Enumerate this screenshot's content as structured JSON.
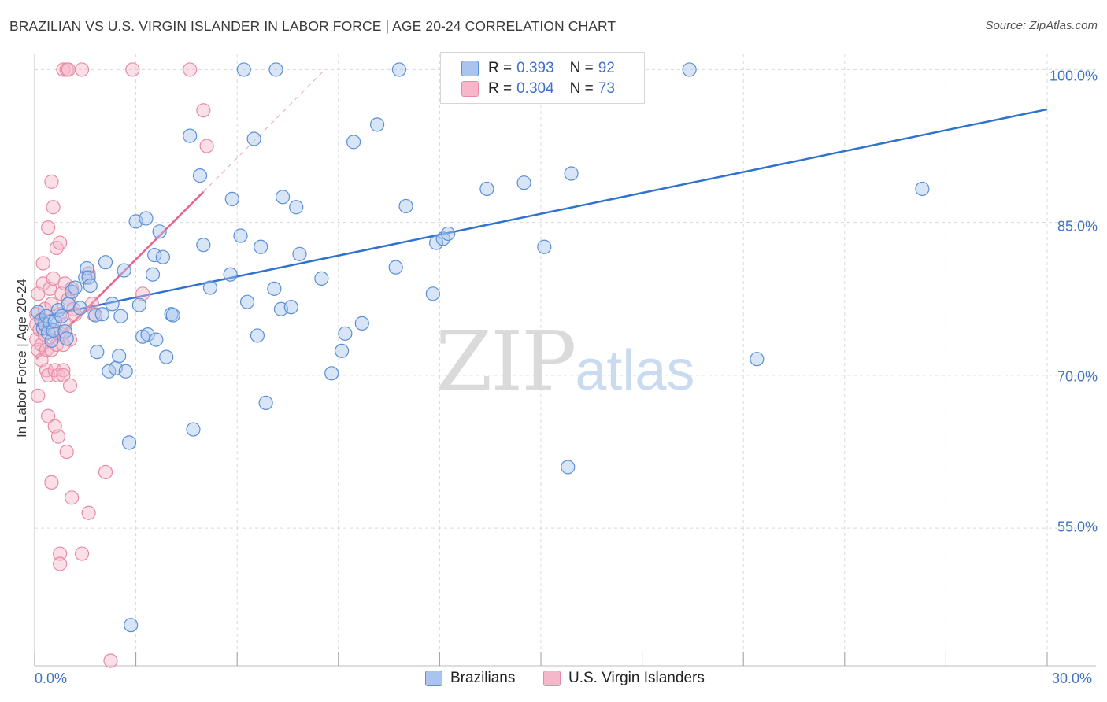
{
  "header": {
    "title": "BRAZILIAN VS U.S. VIRGIN ISLANDER IN LABOR FORCE | AGE 20-24 CORRELATION CHART",
    "source": "Source: ZipAtlas.com"
  },
  "watermark": {
    "zip": "ZIP",
    "atlas": "atlas"
  },
  "legend": {
    "brazilians": {
      "r_label": "R =",
      "r_value": "0.393",
      "n_label": "N =",
      "n_value": "92"
    },
    "virgin": {
      "r_label": "R =",
      "r_value": "0.304",
      "n_label": "N =",
      "n_value": "73"
    }
  },
  "bottom_legend": {
    "brazilians": "Brazilians",
    "virgin": "U.S. Virgin Islanders"
  },
  "colors": {
    "blue_fill": "#a9c5ee",
    "blue_stroke": "#5b8fd8",
    "blue_line": "#2f72d0",
    "pink_fill": "#f5b8ca",
    "pink_stroke": "#e88aa5",
    "pink_line": "#e8638b",
    "grid": "#d9d9d9",
    "tick_text": "#3f72c4"
  },
  "chart_data": {
    "type": "scatter",
    "title": "BRAZILIAN VS U.S. VIRGIN ISLANDER IN LABOR FORCE | AGE 20-24 CORRELATION CHART",
    "xlabel": "",
    "ylabel": "In Labor Force | Age 20-24",
    "xlim": [
      0,
      30
    ],
    "ylim": [
      41.5,
      101.5
    ],
    "y_ticks": [
      55,
      70,
      85,
      100
    ],
    "y_tick_labels": [
      "55.0%",
      "70.0%",
      "85.0%",
      "100.0%"
    ],
    "x_tick_labels": [
      "0.0%",
      "30.0%"
    ],
    "grid": true,
    "series": [
      {
        "name": "Brazilians",
        "color": "blue",
        "points": [
          [
            0.1,
            76.2
          ],
          [
            0.2,
            75.4
          ],
          [
            0.25,
            74.6
          ],
          [
            0.3,
            75.0
          ],
          [
            0.35,
            75.8
          ],
          [
            0.4,
            74.2
          ],
          [
            0.45,
            75.2
          ],
          [
            0.5,
            73.4
          ],
          [
            0.55,
            74.4
          ],
          [
            0.6,
            75.3
          ],
          [
            0.7,
            76.4
          ],
          [
            0.8,
            75.8
          ],
          [
            0.9,
            74.3
          ],
          [
            0.95,
            73.6
          ],
          [
            1.0,
            77.0
          ],
          [
            1.1,
            78.2
          ],
          [
            1.2,
            78.6
          ],
          [
            1.35,
            76.6
          ],
          [
            1.5,
            79.6
          ],
          [
            1.55,
            80.5
          ],
          [
            1.6,
            79.6
          ],
          [
            1.65,
            78.8
          ],
          [
            1.8,
            75.9
          ],
          [
            1.85,
            72.3
          ],
          [
            2.0,
            76.0
          ],
          [
            2.1,
            81.1
          ],
          [
            2.2,
            70.4
          ],
          [
            2.3,
            77.0
          ],
          [
            2.4,
            70.7
          ],
          [
            2.5,
            71.9
          ],
          [
            2.55,
            75.8
          ],
          [
            2.65,
            80.3
          ],
          [
            2.7,
            70.4
          ],
          [
            2.8,
            63.4
          ],
          [
            2.85,
            45.5
          ],
          [
            3.0,
            85.1
          ],
          [
            3.1,
            76.9
          ],
          [
            3.2,
            73.8
          ],
          [
            3.3,
            85.4
          ],
          [
            3.35,
            74.0
          ],
          [
            3.5,
            79.9
          ],
          [
            3.55,
            81.8
          ],
          [
            3.6,
            73.5
          ],
          [
            3.7,
            84.1
          ],
          [
            3.8,
            81.6
          ],
          [
            3.9,
            71.8
          ],
          [
            4.05,
            76.0
          ],
          [
            4.1,
            75.9
          ],
          [
            4.6,
            93.5
          ],
          [
            4.7,
            64.7
          ],
          [
            4.9,
            89.6
          ],
          [
            5.0,
            82.8
          ],
          [
            5.2,
            78.6
          ],
          [
            5.8,
            79.9
          ],
          [
            5.85,
            87.3
          ],
          [
            6.1,
            83.7
          ],
          [
            6.3,
            77.2
          ],
          [
            6.2,
            100.0
          ],
          [
            6.5,
            93.2
          ],
          [
            6.6,
            73.9
          ],
          [
            6.7,
            82.6
          ],
          [
            6.85,
            67.3
          ],
          [
            7.1,
            78.5
          ],
          [
            7.3,
            76.5
          ],
          [
            7.35,
            87.5
          ],
          [
            7.15,
            100.0
          ],
          [
            7.6,
            76.7
          ],
          [
            7.75,
            86.5
          ],
          [
            7.85,
            81.9
          ],
          [
            8.5,
            79.5
          ],
          [
            8.8,
            70.2
          ],
          [
            9.2,
            74.1
          ],
          [
            9.1,
            72.4
          ],
          [
            9.45,
            92.9
          ],
          [
            9.7,
            75.1
          ],
          [
            10.15,
            94.6
          ],
          [
            10.7,
            80.6
          ],
          [
            10.8,
            100.0
          ],
          [
            11.0,
            86.6
          ],
          [
            11.8,
            78.0
          ],
          [
            11.9,
            83.0
          ],
          [
            12.1,
            83.4
          ],
          [
            12.25,
            83.9
          ],
          [
            13.4,
            88.3
          ],
          [
            14.5,
            88.9
          ],
          [
            15.1,
            82.6
          ],
          [
            15.8,
            61.0
          ],
          [
            15.9,
            89.8
          ],
          [
            19.4,
            100.0
          ],
          [
            21.4,
            71.6
          ],
          [
            26.3,
            88.3
          ]
        ],
        "trend_line": {
          "x": [
            0,
            30
          ],
          "y": [
            75.6,
            96.1
          ]
        }
      },
      {
        "name": "U.S. Virgin Islanders",
        "color": "pink",
        "points": [
          [
            0.05,
            76.0
          ],
          [
            0.05,
            75.0
          ],
          [
            0.05,
            73.5
          ],
          [
            0.1,
            78.0
          ],
          [
            0.1,
            72.5
          ],
          [
            0.1,
            68.0
          ],
          [
            0.15,
            74.5
          ],
          [
            0.2,
            75.5
          ],
          [
            0.2,
            71.5
          ],
          [
            0.2,
            73.0
          ],
          [
            0.25,
            81.0
          ],
          [
            0.25,
            79.0
          ],
          [
            0.3,
            76.5
          ],
          [
            0.3,
            74.0
          ],
          [
            0.35,
            72.5
          ],
          [
            0.35,
            70.5
          ],
          [
            0.4,
            84.5
          ],
          [
            0.4,
            70.0
          ],
          [
            0.4,
            66.0
          ],
          [
            0.45,
            78.5
          ],
          [
            0.5,
            89.0
          ],
          [
            0.5,
            77.0
          ],
          [
            0.5,
            74.5
          ],
          [
            0.5,
            72.5
          ],
          [
            0.5,
            59.5
          ],
          [
            0.55,
            86.5
          ],
          [
            0.55,
            79.5
          ],
          [
            0.6,
            70.5
          ],
          [
            0.6,
            65.0
          ],
          [
            0.65,
            82.5
          ],
          [
            0.65,
            73.0
          ],
          [
            0.7,
            70.0
          ],
          [
            0.7,
            64.0
          ],
          [
            0.75,
            83.0
          ],
          [
            0.75,
            76.0
          ],
          [
            0.75,
            52.5
          ],
          [
            0.75,
            51.5
          ],
          [
            0.8,
            78.0
          ],
          [
            0.8,
            74.0
          ],
          [
            0.85,
            73.0
          ],
          [
            0.85,
            70.5
          ],
          [
            0.85,
            70.0
          ],
          [
            0.85,
            100.0
          ],
          [
            0.9,
            79.0
          ],
          [
            0.9,
            75.0
          ],
          [
            0.95,
            100.0
          ],
          [
            0.95,
            62.5
          ],
          [
            1.0,
            77.5
          ],
          [
            1.0,
            100.0
          ],
          [
            1.05,
            73.5
          ],
          [
            1.05,
            69.0
          ],
          [
            1.1,
            58.0
          ],
          [
            1.1,
            78.5
          ],
          [
            1.15,
            76.5
          ],
          [
            1.2,
            76.0
          ],
          [
            1.4,
            52.5
          ],
          [
            1.4,
            100.0
          ],
          [
            1.6,
            80.0
          ],
          [
            1.6,
            56.5
          ],
          [
            1.7,
            77.0
          ],
          [
            1.75,
            76.0
          ],
          [
            2.1,
            60.5
          ],
          [
            2.25,
            42.0
          ],
          [
            2.9,
            100.0
          ],
          [
            3.2,
            78.0
          ],
          [
            4.6,
            100.0
          ],
          [
            5.0,
            96.0
          ],
          [
            5.1,
            92.5
          ]
        ],
        "trend_line": {
          "x": [
            0.05,
            5.0
          ],
          "y": [
            71.6,
            88.0
          ]
        },
        "trend_extension": {
          "x": [
            5.0,
            8.6
          ],
          "y": [
            88.0,
            100.0
          ]
        }
      }
    ]
  }
}
